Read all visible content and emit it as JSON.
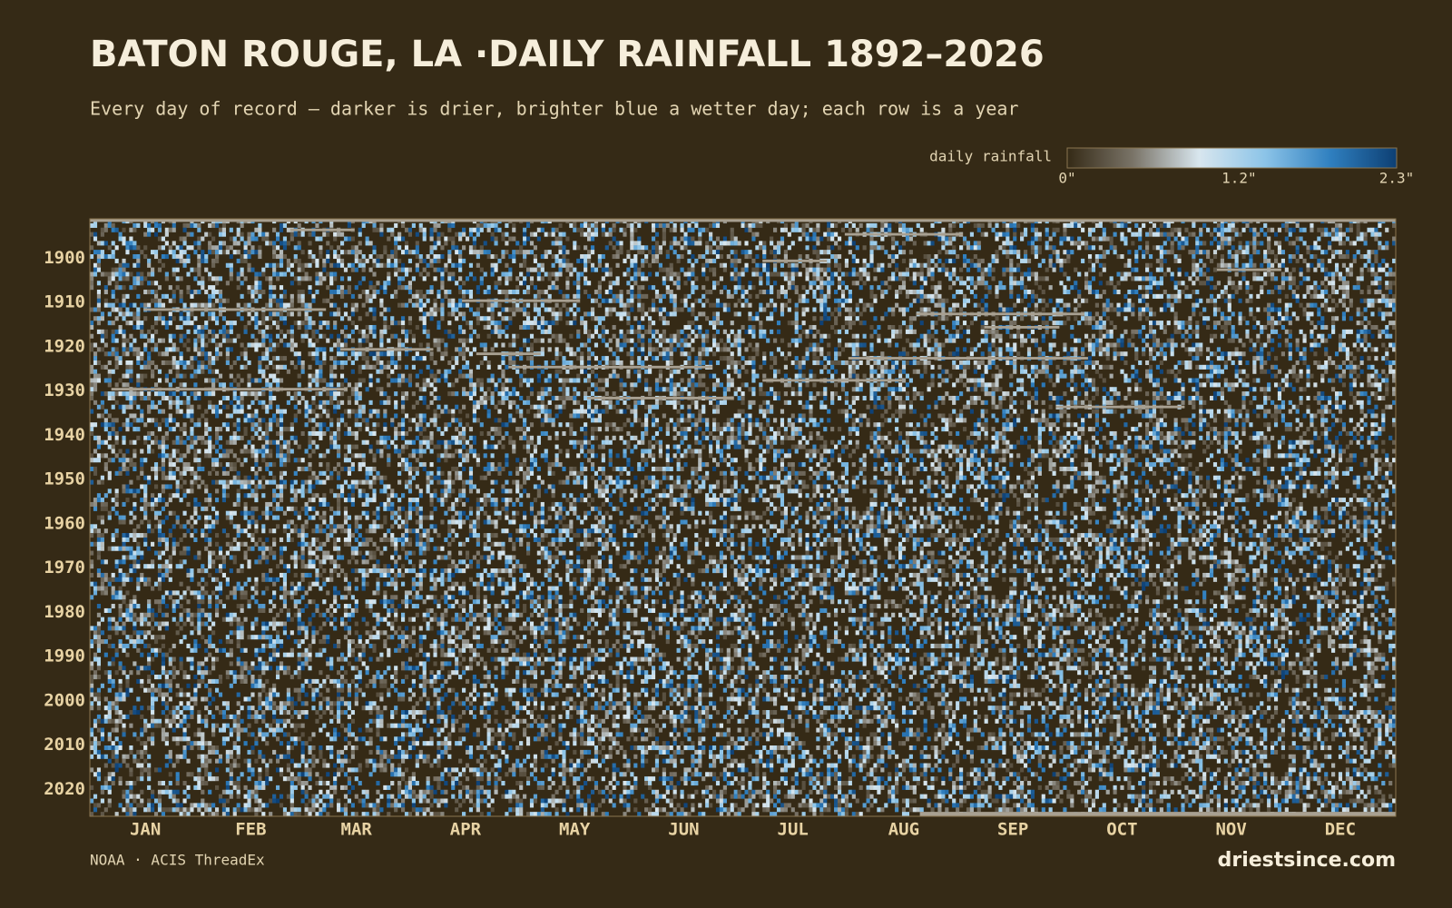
{
  "chart_data": {
    "type": "heatmap",
    "title": "BATON ROUGE, LA ·DAILY RAINFALL 1892–2026",
    "subtitle": "Every day of record — darker is drier, brighter blue a wetter day; each row is a year",
    "colorbar_label": "daily rainfall",
    "clim": [
      0,
      2.3
    ],
    "cticks": [
      {
        "value": 0,
        "label": "0\""
      },
      {
        "value": 1.2,
        "label": "1.2\""
      },
      {
        "value": 2.3,
        "label": "2.3\""
      }
    ],
    "colorscale": [
      "#352a16",
      "#7a7468",
      "#d8e6ee",
      "#8cc4e8",
      "#2f7fbf",
      "#0d3f73"
    ],
    "missing_color": "#a8a091",
    "categories": [
      "JAN",
      "FEB",
      "MAR",
      "APR",
      "MAY",
      "JUN",
      "JUL",
      "AUG",
      "SEP",
      "OCT",
      "NOV",
      "DEC"
    ],
    "ylim": [
      1892,
      2026
    ],
    "yticks": [
      1900,
      1910,
      1920,
      1930,
      1940,
      1950,
      1960,
      1970,
      1980,
      1990,
      2000,
      2010,
      2020
    ],
    "source": "NOAA · ACIS ThreadEx",
    "brand": "driestsince.com"
  }
}
